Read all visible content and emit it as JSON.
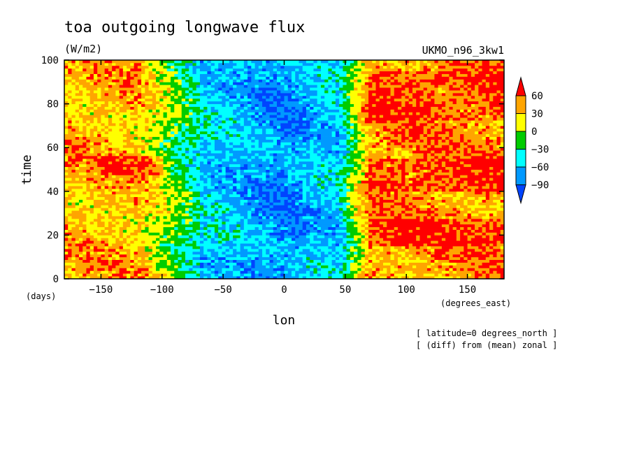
{
  "chart_data": {
    "type": "heatmap",
    "title": "toa outgoing longwave flux",
    "units": "(W/m2)",
    "dataset_label": "UKMO_n96_3kw1",
    "xlabel": "lon",
    "ylabel": "time",
    "x_units": "(degrees_east)",
    "y_units": "(days)",
    "xlim": [
      -180,
      180
    ],
    "ylim": [
      0,
      100
    ],
    "x_ticks": [
      -150,
      -100,
      -50,
      0,
      50,
      100,
      150
    ],
    "y_ticks": [
      0,
      20,
      40,
      60,
      80,
      100
    ],
    "x_tick_labels": [
      "−150",
      "−100",
      "−50",
      "0",
      "50",
      "100",
      "150"
    ],
    "y_tick_labels": [
      "0",
      "20",
      "40",
      "60",
      "80",
      "100"
    ],
    "colorbar": {
      "levels": [
        60,
        30,
        0,
        -30,
        -60,
        -90
      ],
      "level_labels": [
        "60",
        "30",
        "0",
        "−30",
        "−60",
        "−90"
      ],
      "colors": [
        "#ff0000",
        "#ffa500",
        "#ffff00",
        "#00cc00",
        "#00ffff",
        "#0099ff",
        "#0044ff"
      ],
      "extend": "both"
    },
    "notes": [
      "[ latitude=0 degrees_north ]",
      "[ (diff) from (mean) zonal ]"
    ],
    "description_of_field": "anomaly from zonal mean; low values (blue) centered near lon -60 to 50, high values (red/orange) near lon 60 to 180 and around lon -180 to -100"
  }
}
